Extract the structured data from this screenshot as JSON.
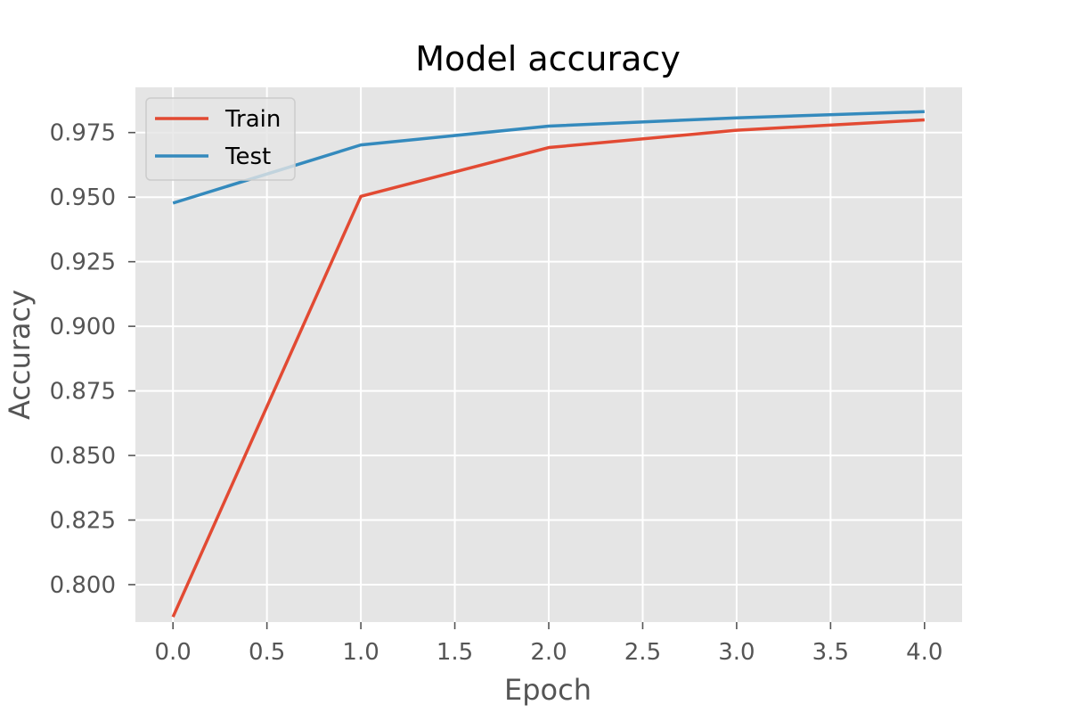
{
  "chart_data": {
    "type": "line",
    "title": "Model accuracy",
    "xlabel": "Epoch",
    "ylabel": "Accuracy",
    "x": [
      0,
      1,
      2,
      3,
      4
    ],
    "xlim": [
      -0.2,
      4.2
    ],
    "ylim": [
      0.7855,
      0.9925
    ],
    "xticks": [
      0.0,
      0.5,
      1.0,
      1.5,
      2.0,
      2.5,
      3.0,
      3.5,
      4.0
    ],
    "xtick_labels": [
      "0.0",
      "0.5",
      "1.0",
      "1.5",
      "2.0",
      "2.5",
      "3.0",
      "3.5",
      "4.0"
    ],
    "yticks": [
      0.8,
      0.825,
      0.85,
      0.875,
      0.9,
      0.925,
      0.95,
      0.975
    ],
    "ytick_labels": [
      "0.800",
      "0.825",
      "0.850",
      "0.875",
      "0.900",
      "0.925",
      "0.950",
      "0.975"
    ],
    "grid": true,
    "legend_position": "top-left",
    "series": [
      {
        "name": "Train",
        "color": "#E24A33",
        "values": [
          0.7875,
          0.9503,
          0.9692,
          0.9759,
          0.9799
        ]
      },
      {
        "name": "Test",
        "color": "#348ABD",
        "values": [
          0.9477,
          0.9702,
          0.9775,
          0.9807,
          0.9831
        ]
      }
    ]
  },
  "style": {
    "plot_background": "#E5E5E5",
    "grid_color": "#FFFFFF",
    "tick_color": "#555555"
  }
}
